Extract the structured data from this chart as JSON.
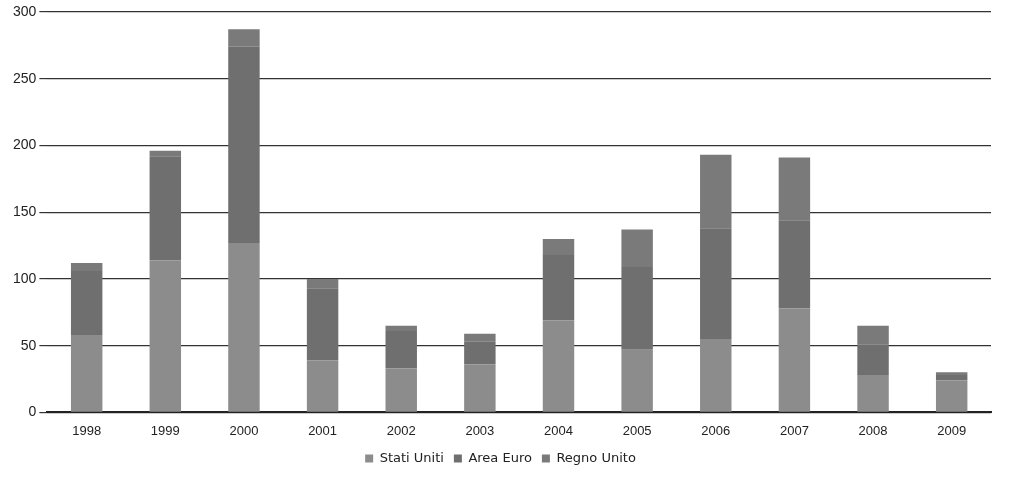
{
  "chart_data": {
    "type": "bar",
    "stacked": true,
    "categories": [
      "1998",
      "1999",
      "2000",
      "2001",
      "2002",
      "2003",
      "2004",
      "2005",
      "2006",
      "2007",
      "2008",
      "2009"
    ],
    "series": [
      {
        "name": "Stati Uniti",
        "color": "#8c8c8c",
        "values": [
          58,
          114,
          127,
          39,
          33,
          36,
          69,
          47,
          55,
          78,
          28,
          24
        ]
      },
      {
        "name": "Area Euro",
        "color": "#6f6f6f",
        "values": [
          48,
          78,
          147,
          54,
          28,
          17,
          49,
          62,
          83,
          66,
          23,
          4
        ]
      },
      {
        "name": "Regno Unito",
        "color": "#7a7a7a",
        "values": [
          6,
          4,
          13,
          7,
          4,
          6,
          12,
          28,
          55,
          47,
          14,
          2
        ]
      }
    ],
    "ylim": [
      0,
      300
    ],
    "yticks": [
      0,
      50,
      100,
      150,
      200,
      250,
      300
    ],
    "grid": "y",
    "legend": "bottom"
  }
}
